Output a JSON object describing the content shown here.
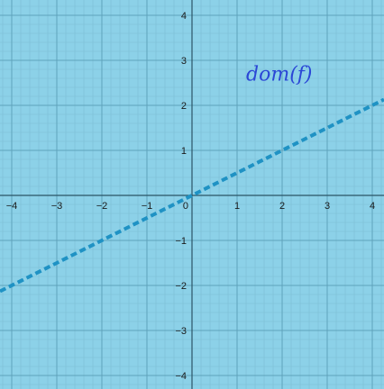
{
  "chart_data": {
    "type": "line",
    "xlim": [
      -4.26,
      4.26
    ],
    "ylim": [
      -4.3,
      4.34
    ],
    "grid": true,
    "minor_grid_divisions": 5,
    "x_ticks": [
      -4,
      -3,
      -2,
      -1,
      0,
      1,
      2,
      3,
      4
    ],
    "y_ticks": [
      -4,
      -3,
      -2,
      -1,
      1,
      2,
      3,
      4
    ],
    "x_tick_labels": [
      "−4",
      "−3",
      "−2",
      "−1",
      "0",
      "1",
      "2",
      "3",
      "4"
    ],
    "y_tick_labels": [
      "−4",
      "−3",
      "−2",
      "−1",
      "1",
      "2",
      "3",
      "4"
    ],
    "series": [
      {
        "x": [
          -4.26,
          4.26
        ],
        "y": [
          -2.13,
          2.13
        ],
        "style": "dashed",
        "color": "#1f92c4"
      }
    ],
    "annotations": [
      {
        "text": "dom(f)",
        "x": 1.2,
        "y": 2.55,
        "color": "#2b47d6"
      }
    ]
  },
  "colors": {
    "background": "#8cd1e8",
    "minor_grid": "#7cbdd3",
    "major_grid": "#5ea3bb",
    "axis": "#2b5566",
    "tick_text": "#1a1a1a"
  }
}
